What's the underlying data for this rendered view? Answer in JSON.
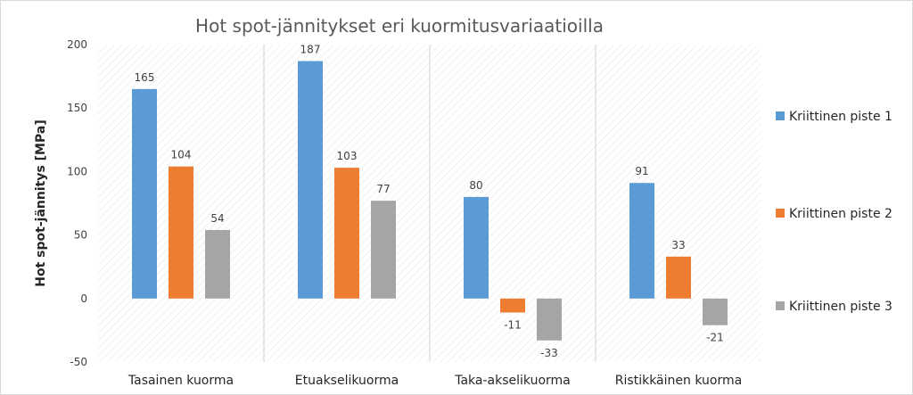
{
  "chart_data": {
    "type": "bar",
    "title": "Hot spot-jännitykset eri kuormitusvariaatioilla",
    "xlabel": "",
    "ylabel": "Hot spot-jännitys [MPa]",
    "ylim": [
      -50,
      200
    ],
    "yticks": [
      -50,
      0,
      50,
      100,
      150,
      200
    ],
    "grid": "vertical category separators",
    "legend_position": "right",
    "categories": [
      "Tasainen kuorma",
      "Etuakselikuorma",
      "Taka-akselikuorma",
      "Ristikkäinen kuorma"
    ],
    "series": [
      {
        "name": "Kriittinen piste 1",
        "color": "#5B9BD5",
        "values": [
          165,
          187,
          80,
          91
        ]
      },
      {
        "name": "Kriittinen piste 2",
        "color": "#ED7D31",
        "values": [
          104,
          103,
          -11,
          33
        ]
      },
      {
        "name": "Kriittinen piste 3",
        "color": "#A5A5A5",
        "values": [
          54,
          77,
          -33,
          -21
        ]
      }
    ]
  }
}
